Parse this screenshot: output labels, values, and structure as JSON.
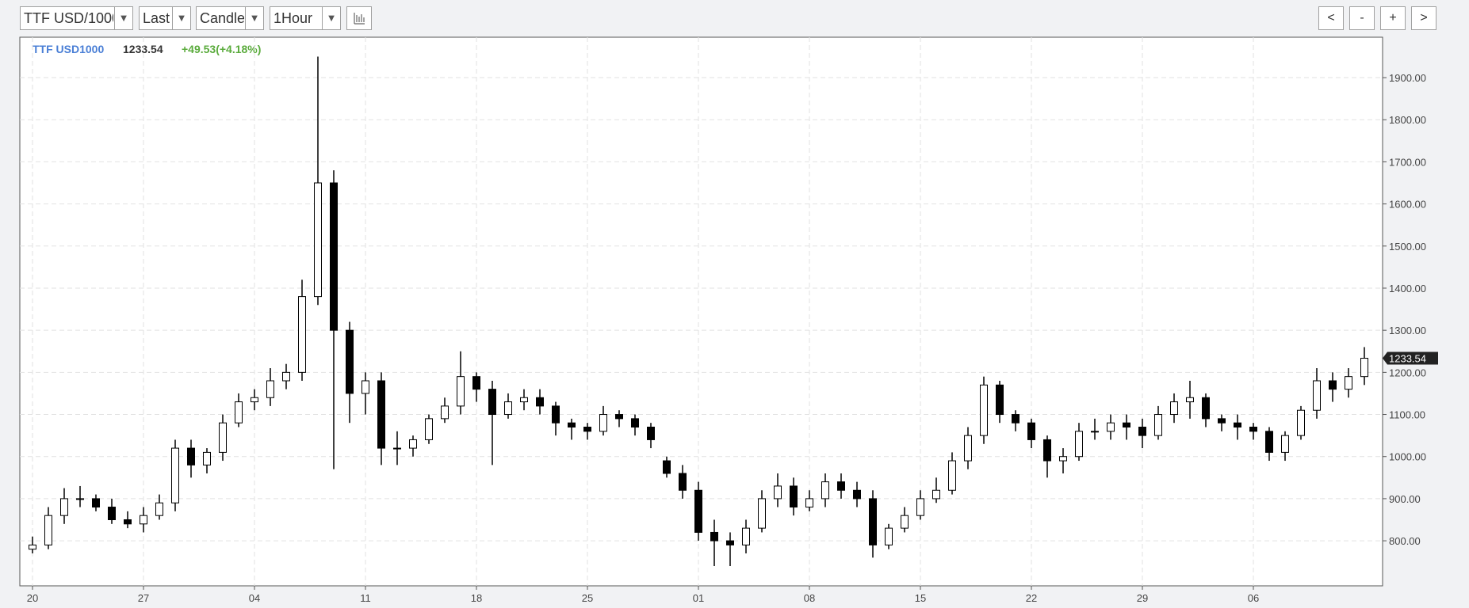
{
  "toolbar": {
    "selects": [
      "TTF USD/1000",
      "Last",
      "Candle",
      "1Hour"
    ],
    "buttons": [
      "<",
      "-",
      "+",
      ">"
    ]
  },
  "chart_data": {
    "type": "candlestick",
    "instrument": "TTF USD1000",
    "last": 1233.54,
    "change": "+49.53(+4.18%)",
    "color": "#000000",
    "grid": true,
    "x": [
      0,
      1,
      2,
      3,
      4,
      5,
      6,
      7,
      8,
      9,
      10,
      11,
      12,
      13,
      14,
      15,
      16,
      17,
      18,
      19,
      20,
      21,
      22,
      23,
      24,
      25,
      26,
      27,
      28,
      29,
      30,
      31,
      32,
      33,
      34,
      35,
      36,
      37,
      38,
      39,
      40,
      41,
      42,
      43,
      44,
      45,
      46,
      47,
      48,
      49,
      50,
      51,
      52,
      53,
      54,
      55,
      56,
      57,
      58,
      59,
      60,
      61,
      62,
      63,
      64,
      65,
      66,
      67,
      68,
      69,
      70,
      71,
      72,
      73,
      74,
      75,
      76,
      77,
      78,
      79,
      80,
      81,
      82,
      83,
      84
    ],
    "open": [
      780,
      790,
      860,
      900,
      900,
      880,
      850,
      840,
      860,
      890,
      1020,
      980,
      1010,
      1080,
      1130,
      1140,
      1180,
      1200,
      1380,
      1650,
      1300,
      1150,
      1180,
      1020,
      1020,
      1040,
      1090,
      1120,
      1190,
      1160,
      1100,
      1130,
      1140,
      1120,
      1080,
      1070,
      1060,
      1100,
      1090,
      1070,
      990,
      960,
      920,
      820,
      800,
      790,
      830,
      900,
      930,
      880,
      900,
      940,
      920,
      900,
      790,
      830,
      860,
      900,
      920,
      990,
      1050,
      1170,
      1100,
      1080,
      1040,
      990,
      1000,
      1060,
      1060,
      1080,
      1070,
      1050,
      1100,
      1130,
      1140,
      1090,
      1080,
      1070,
      1060,
      1010,
      1050,
      1110,
      1180,
      1160,
      1190
    ],
    "high": [
      810,
      880,
      925,
      930,
      910,
      900,
      870,
      880,
      910,
      1040,
      1040,
      1020,
      1100,
      1150,
      1160,
      1210,
      1220,
      1420,
      1950,
      1680,
      1320,
      1200,
      1200,
      1060,
      1050,
      1100,
      1140,
      1250,
      1200,
      1180,
      1150,
      1160,
      1160,
      1130,
      1090,
      1080,
      1120,
      1110,
      1100,
      1080,
      1000,
      980,
      940,
      850,
      820,
      850,
      920,
      960,
      950,
      920,
      960,
      960,
      940,
      920,
      840,
      880,
      920,
      950,
      1010,
      1070,
      1190,
      1180,
      1110,
      1090,
      1050,
      1020,
      1080,
      1090,
      1100,
      1100,
      1090,
      1120,
      1150,
      1180,
      1150,
      1100,
      1100,
      1080,
      1070,
      1060,
      1120,
      1210,
      1200,
      1210,
      1260
    ],
    "low": [
      770,
      780,
      840,
      880,
      870,
      840,
      830,
      820,
      850,
      870,
      950,
      960,
      990,
      1070,
      1110,
      1120,
      1160,
      1180,
      1360,
      970,
      1080,
      1100,
      980,
      980,
      1000,
      1030,
      1080,
      1100,
      1130,
      980,
      1090,
      1110,
      1100,
      1050,
      1040,
      1040,
      1050,
      1070,
      1050,
      1020,
      950,
      900,
      800,
      740,
      740,
      770,
      820,
      880,
      860,
      870,
      880,
      900,
      880,
      760,
      780,
      820,
      850,
      890,
      910,
      970,
      1030,
      1080,
      1060,
      1020,
      950,
      960,
      990,
      1040,
      1040,
      1040,
      1020,
      1040,
      1080,
      1090,
      1070,
      1060,
      1040,
      1040,
      990,
      990,
      1040,
      1090,
      1130,
      1140,
      1170
    ],
    "close": [
      790,
      860,
      900,
      900,
      880,
      850,
      840,
      860,
      890,
      1020,
      980,
      1010,
      1080,
      1130,
      1140,
      1180,
      1200,
      1380,
      1650,
      1300,
      1150,
      1180,
      1020,
      1020,
      1040,
      1090,
      1120,
      1190,
      1160,
      1100,
      1130,
      1140,
      1120,
      1080,
      1070,
      1060,
      1100,
      1090,
      1070,
      1040,
      960,
      920,
      820,
      800,
      790,
      830,
      900,
      930,
      880,
      900,
      940,
      920,
      900,
      790,
      830,
      860,
      900,
      920,
      990,
      1050,
      1170,
      1100,
      1080,
      1040,
      990,
      1000,
      1060,
      1060,
      1080,
      1070,
      1050,
      1100,
      1130,
      1140,
      1090,
      1080,
      1070,
      1060,
      1010,
      1050,
      1110,
      1180,
      1160,
      1190,
      1233.54
    ],
    "xlim": [
      -0.8,
      85.15
    ],
    "xticks": [
      {
        "value": 0,
        "label": "20"
      },
      {
        "value": 7,
        "label": "27"
      },
      {
        "value": 14,
        "label": "04"
      },
      {
        "value": 21,
        "label": "11"
      },
      {
        "value": 28,
        "label": "18"
      },
      {
        "value": 35,
        "label": "25"
      },
      {
        "value": 42,
        "label": "01"
      },
      {
        "value": 49,
        "label": "08"
      },
      {
        "value": 56,
        "label": "15"
      },
      {
        "value": 63,
        "label": "22"
      },
      {
        "value": 70,
        "label": "29"
      },
      {
        "value": 77,
        "label": "06"
      }
    ],
    "ylim": [
      693,
      1996
    ],
    "yticks": [
      {
        "value": 800,
        "label": "800.00"
      },
      {
        "value": 900,
        "label": "900.00"
      },
      {
        "value": 1000,
        "label": "1000.00"
      },
      {
        "value": 1100,
        "label": "1100.00"
      },
      {
        "value": 1200,
        "label": "1200.00"
      },
      {
        "value": 1300,
        "label": "1300.00"
      },
      {
        "value": 1400,
        "label": "1400.00"
      },
      {
        "value": 1500,
        "label": "1500.00"
      },
      {
        "value": 1600,
        "label": "1600.00"
      },
      {
        "value": 1700,
        "label": "1700.00"
      },
      {
        "value": 1800,
        "label": "1800.00"
      },
      {
        "value": 1900,
        "label": "1900.00"
      }
    ]
  }
}
